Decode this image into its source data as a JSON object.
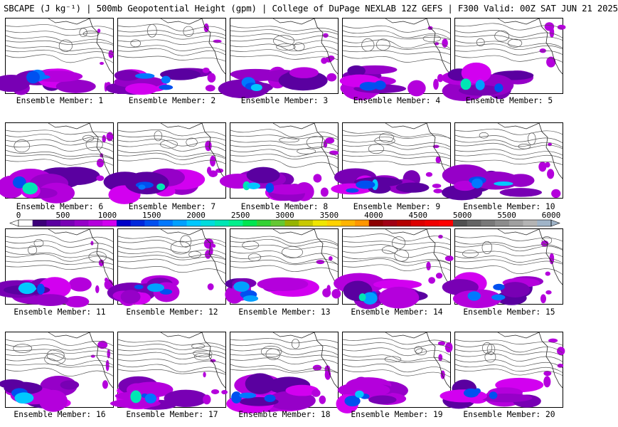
{
  "header": {
    "title": "SBCAPE (J kg⁻¹) | 500mb Geopotential Height (gpm) | College of DuPage NEXLAB 12Z GEFS | F300 Valid: 00Z SAT JUN 21 2025"
  },
  "members": [
    {
      "label": "Ensemble Member: 1"
    },
    {
      "label": "Ensemble Member: 2"
    },
    {
      "label": "Ensemble Member: 3"
    },
    {
      "label": "Ensemble Member: 4"
    },
    {
      "label": "Ensemble Member: 5"
    },
    {
      "label": "Ensemble Member: 6"
    },
    {
      "label": "Ensemble Member: 7"
    },
    {
      "label": "Ensemble Member: 8"
    },
    {
      "label": "Ensemble Member: 9"
    },
    {
      "label": "Ensemble Member: 10"
    },
    {
      "label": "Ensemble Member: 11"
    },
    {
      "label": "Ensemble Member: 12"
    },
    {
      "label": "Ensemble Member: 13"
    },
    {
      "label": "Ensemble Member: 14"
    },
    {
      "label": "Ensemble Member: 15"
    },
    {
      "label": "Ensemble Member: 16"
    },
    {
      "label": "Ensemble Member: 17"
    },
    {
      "label": "Ensemble Member: 18"
    },
    {
      "label": "Ensemble Member: 19"
    },
    {
      "label": "Ensemble Member: 20"
    }
  ],
  "colorbar": {
    "ticks": [
      "0",
      "500",
      "1000",
      "1500",
      "2000",
      "2500",
      "3000",
      "3500",
      "4000",
      "4500",
      "5000",
      "5500",
      "6000"
    ],
    "colors": [
      "#ffffff",
      "#3c0078",
      "#5a00a0",
      "#7800b4",
      "#9600c8",
      "#b400dc",
      "#d200f0",
      "#0000c8",
      "#0028dc",
      "#0050f0",
      "#0078ff",
      "#00a0ff",
      "#00c8ff",
      "#00dcdc",
      "#00e6b4",
      "#00f08c",
      "#00e650",
      "#32d232",
      "#64c832",
      "#96b400",
      "#c8c800",
      "#f0e600",
      "#ffd200",
      "#ffb400",
      "#ff9600",
      "#8c0000",
      "#a00014",
      "#b40000",
      "#dc0000",
      "#f00000",
      "#ff0000",
      "#505050",
      "#646464",
      "#787878",
      "#8c8c8c",
      "#a0a0a0",
      "#b4b4b4",
      "#a0b4c8"
    ]
  }
}
